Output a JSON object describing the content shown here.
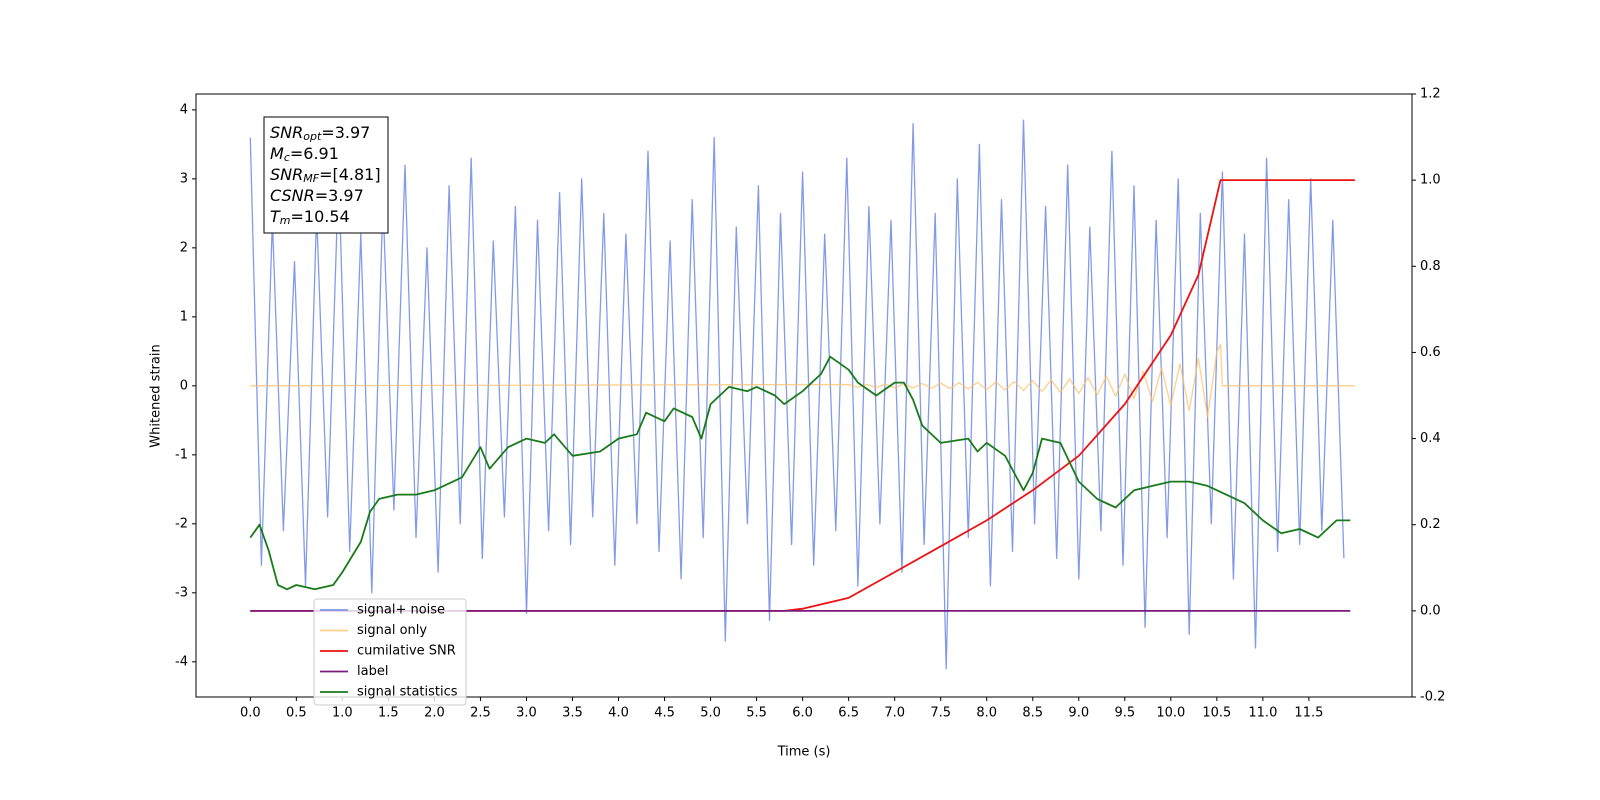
{
  "chart_data": {
    "type": "line",
    "xlabel": "Time (s)",
    "ylabel": "Whitened strain",
    "xlim": [
      -0.59,
      12.62
    ],
    "ylim": [
      -4.51,
      4.23
    ],
    "y2lim": [
      -0.2,
      1.2
    ],
    "xticks": [
      {
        "value": 0,
        "label": "0.0"
      },
      0.5,
      {
        "value": 1,
        "label": "1.0"
      },
      1.5,
      {
        "value": 2,
        "label": "2.0"
      },
      2.5,
      {
        "value": 3,
        "label": "3.0"
      },
      3.5,
      {
        "value": 4,
        "label": "4.0"
      },
      4.5,
      {
        "value": 5,
        "label": "5.0"
      },
      5.5,
      {
        "value": 6,
        "label": "6.0"
      },
      6.5,
      {
        "value": 7,
        "label": "7.0"
      },
      7.5,
      {
        "value": 8,
        "label": "8.0"
      },
      8.5,
      {
        "value": 9,
        "label": "9.0"
      },
      9.5,
      {
        "value": 10,
        "label": "10.0"
      },
      10.5,
      {
        "value": 11,
        "label": "11.0"
      },
      11.5
    ],
    "yticks": [
      -4,
      -3,
      -2,
      -1,
      0,
      1,
      2,
      3,
      4
    ],
    "y2ticks": [
      -0.2,
      {
        "value": 0,
        "label": "0.0"
      },
      0.2,
      0.4,
      0.6,
      0.8,
      {
        "value": 1,
        "label": "1.0"
      },
      1.2
    ],
    "legend": "lower left",
    "annotation": [
      {
        "main": "SNR",
        "sub": "opt",
        "rest": "=3.97"
      },
      {
        "main": "M",
        "sub": "c",
        "rest": "=6.91"
      },
      {
        "main": "SNR",
        "sub": "MF",
        "rest": "=[4.81]"
      },
      {
        "main": "CSNR",
        "rest": "=3.97"
      },
      {
        "main": "T",
        "sub": "m",
        "rest": "=10.54"
      }
    ],
    "series": [
      {
        "name": "signal+ noise",
        "color": "#7b96e8",
        "x": [
          0,
          0.12,
          0.24,
          0.36,
          0.48,
          0.6,
          0.72,
          0.84,
          0.96,
          1.08,
          1.2,
          1.32,
          1.44,
          1.56,
          1.68,
          1.8,
          1.92,
          2.04,
          2.16,
          2.28,
          2.4,
          2.52,
          2.64,
          2.76,
          2.88,
          3,
          3.12,
          3.24,
          3.36,
          3.48,
          3.6,
          3.72,
          3.84,
          3.96,
          4.08,
          4.2,
          4.32,
          4.44,
          4.56,
          4.68,
          4.8,
          4.92,
          5.04,
          5.16,
          5.28,
          5.4,
          5.52,
          5.64,
          5.76,
          5.88,
          6,
          6.12,
          6.24,
          6.36,
          6.48,
          6.6,
          6.72,
          6.84,
          6.96,
          7.08,
          7.2,
          7.32,
          7.44,
          7.56,
          7.68,
          7.8,
          7.92,
          8.04,
          8.16,
          8.28,
          8.4,
          8.52,
          8.64,
          8.76,
          8.88,
          9,
          9.12,
          9.24,
          9.36,
          9.48,
          9.6,
          9.72,
          9.84,
          9.96,
          10.08,
          10.2,
          10.32,
          10.44,
          10.56,
          10.68,
          10.8,
          10.92,
          11.04,
          11.16,
          11.28,
          11.4,
          11.52,
          11.64,
          11.76,
          11.88
        ],
        "values": [
          3.6,
          -2.6,
          2.4,
          -2.1,
          1.8,
          -2.9,
          2.5,
          -1.9,
          3.1,
          -2.4,
          2.2,
          -3.0,
          2.7,
          -1.8,
          3.2,
          -2.2,
          2.0,
          -2.7,
          2.9,
          -2.0,
          3.3,
          -2.5,
          2.1,
          -1.9,
          2.6,
          -3.3,
          2.4,
          -2.1,
          2.8,
          -2.3,
          3.0,
          -1.9,
          2.5,
          -2.6,
          2.2,
          -2.0,
          3.4,
          -2.4,
          2.1,
          -2.8,
          2.7,
          -2.2,
          3.6,
          -3.7,
          2.3,
          -2.0,
          2.9,
          -3.4,
          2.5,
          -2.3,
          3.1,
          -2.6,
          2.2,
          -2.1,
          3.3,
          -2.9,
          2.6,
          -2.0,
          2.4,
          -2.7,
          3.8,
          -2.3,
          2.5,
          -4.1,
          3.0,
          -2.2,
          3.5,
          -2.9,
          2.7,
          -2.4,
          3.85,
          -2.0,
          2.6,
          -2.5,
          3.2,
          -2.8,
          2.3,
          -2.1,
          3.4,
          -2.6,
          2.9,
          -3.5,
          2.4,
          -2.2,
          3.0,
          -3.6,
          2.5,
          -2.0,
          3.1,
          -2.8,
          2.2,
          -3.8,
          3.3,
          -2.4,
          2.7,
          -2.3,
          3.0,
          -2.1,
          2.4,
          -2.5
        ]
      },
      {
        "name": "signal only",
        "color": "#ffbf66",
        "x": [
          0,
          6.5,
          6.6,
          6.7,
          6.8,
          6.9,
          7,
          7.1,
          7.2,
          7.3,
          7.4,
          7.5,
          7.6,
          7.7,
          7.8,
          7.9,
          8,
          8.1,
          8.2,
          8.3,
          8.4,
          8.5,
          8.6,
          8.7,
          8.8,
          8.9,
          9,
          9.1,
          9.2,
          9.3,
          9.4,
          9.5,
          9.6,
          9.7,
          9.8,
          9.9,
          10,
          10.1,
          10.2,
          10.3,
          10.4,
          10.5,
          10.54,
          10.56,
          12
        ],
        "values": [
          0,
          0.02,
          -0.02,
          0.02,
          -0.025,
          0.025,
          -0.03,
          0.03,
          -0.03,
          0.035,
          -0.035,
          0.04,
          -0.04,
          0.045,
          -0.045,
          0.05,
          -0.055,
          0.055,
          -0.06,
          0.065,
          -0.07,
          0.075,
          -0.08,
          0.085,
          -0.09,
          0.1,
          -0.11,
          0.12,
          -0.13,
          0.14,
          -0.15,
          0.17,
          -0.19,
          0.21,
          -0.23,
          0.26,
          -0.29,
          0.32,
          -0.36,
          0.4,
          -0.45,
          0.5,
          0.6,
          0,
          0
        ]
      },
      {
        "name": "cumilative SNR",
        "color": "#ee1111",
        "axis": "y2",
        "x": [
          0,
          5.8,
          6,
          6.5,
          7,
          7.5,
          8,
          8.5,
          9,
          9.5,
          10,
          10.3,
          10.54,
          12
        ],
        "values": [
          0,
          0,
          0.005,
          0.03,
          0.09,
          0.15,
          0.21,
          0.28,
          0.36,
          0.48,
          0.64,
          0.78,
          1,
          1
        ]
      },
      {
        "name": "label",
        "color": "#7a1a7a",
        "axis": "y2",
        "x": [
          0,
          11.95
        ],
        "values": [
          0,
          0
        ]
      },
      {
        "name": "signal statistics",
        "color": "#1a7a1a",
        "axis": "y2",
        "x": [
          0,
          0.1,
          0.2,
          0.3,
          0.4,
          0.5,
          0.7,
          0.9,
          1,
          1.2,
          1.3,
          1.4,
          1.6,
          1.8,
          2,
          2.3,
          2.5,
          2.6,
          2.8,
          3,
          3.2,
          3.3,
          3.5,
          3.8,
          4,
          4.2,
          4.3,
          4.5,
          4.6,
          4.8,
          4.9,
          5,
          5.2,
          5.4,
          5.5,
          5.7,
          5.8,
          6,
          6.2,
          6.3,
          6.5,
          6.6,
          6.8,
          7,
          7.1,
          7.2,
          7.3,
          7.5,
          7.8,
          7.9,
          8,
          8.2,
          8.4,
          8.5,
          8.6,
          8.8,
          9,
          9.2,
          9.4,
          9.6,
          9.8,
          10,
          10.2,
          10.4,
          10.6,
          10.8,
          11,
          11.2,
          11.4,
          11.6,
          11.8,
          11.95
        ],
        "values": [
          0.17,
          0.2,
          0.14,
          0.06,
          0.05,
          0.06,
          0.05,
          0.06,
          0.09,
          0.16,
          0.23,
          0.26,
          0.27,
          0.27,
          0.28,
          0.31,
          0.38,
          0.33,
          0.38,
          0.4,
          0.39,
          0.41,
          0.36,
          0.37,
          0.4,
          0.41,
          0.46,
          0.44,
          0.47,
          0.45,
          0.4,
          0.48,
          0.52,
          0.51,
          0.52,
          0.5,
          0.48,
          0.51,
          0.55,
          0.59,
          0.56,
          0.53,
          0.5,
          0.53,
          0.53,
          0.49,
          0.43,
          0.39,
          0.4,
          0.37,
          0.39,
          0.36,
          0.28,
          0.32,
          0.4,
          0.39,
          0.3,
          0.26,
          0.24,
          0.28,
          0.29,
          0.3,
          0.3,
          0.29,
          0.27,
          0.25,
          0.21,
          0.18,
          0.19,
          0.17,
          0.21,
          0.21
        ]
      }
    ]
  }
}
